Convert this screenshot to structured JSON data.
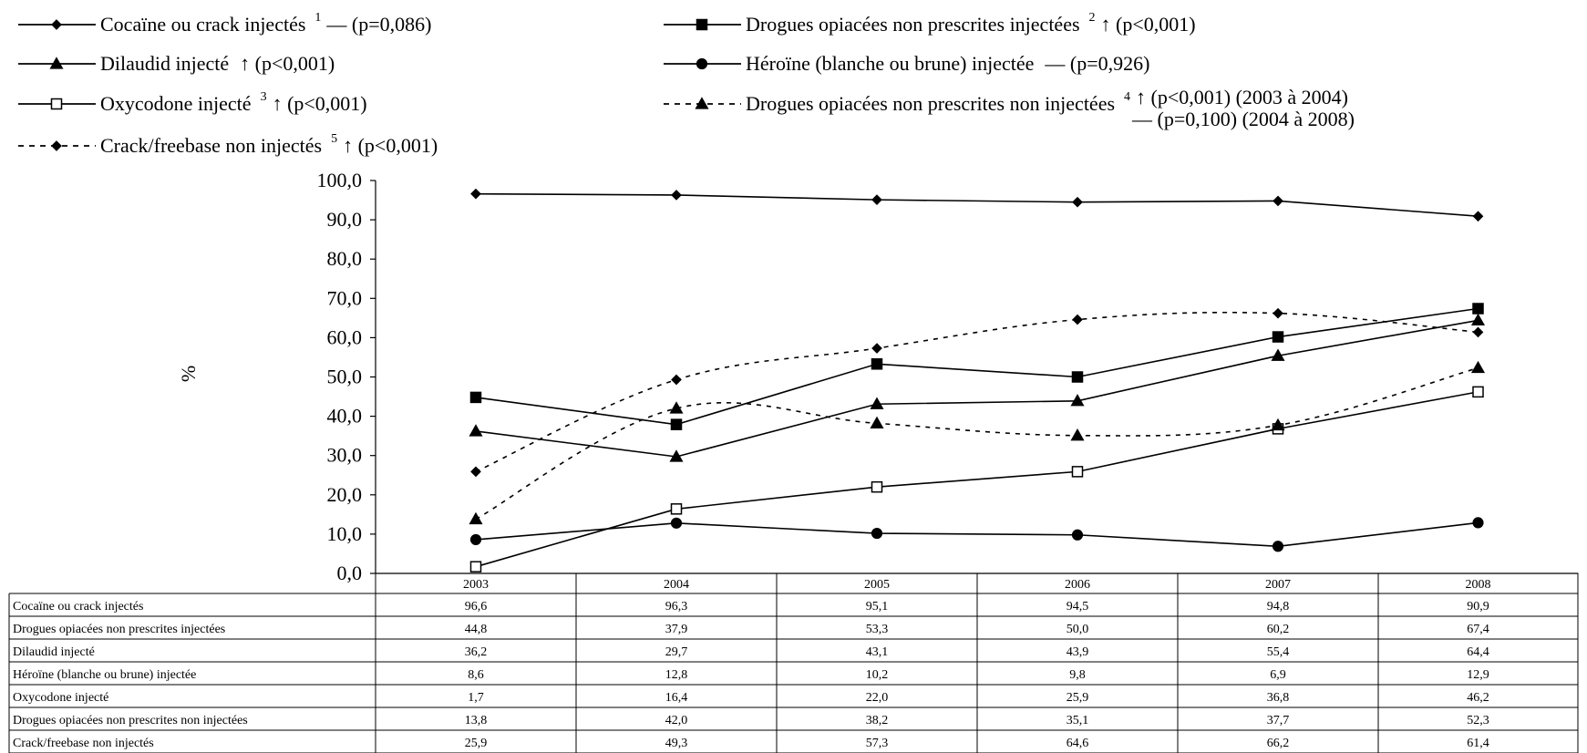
{
  "chart_data": {
    "type": "line",
    "title": "",
    "xlabel": "",
    "ylabel": "%",
    "ylim": [
      0,
      100
    ],
    "yticks": [
      "0,0",
      "10,0",
      "20,0",
      "30,0",
      "40,0",
      "50,0",
      "60,0",
      "70,0",
      "80,0",
      "90,0",
      "100,0"
    ],
    "categories": [
      "2003",
      "2004",
      "2005",
      "2006",
      "2007",
      "2008"
    ],
    "grid": false,
    "legend_position": "top",
    "series": [
      {
        "name": "Cocaïne ou crack injectés",
        "legend_sup": "1",
        "legend_note": "— (p=0,086)",
        "marker": "diamond",
        "fill": "#000000",
        "dash": false,
        "values": [
          96.6,
          96.3,
          95.1,
          94.5,
          94.8,
          90.9
        ],
        "labels": [
          "96,6",
          "96,3",
          "95,1",
          "94,5",
          "94,8",
          "90,9"
        ]
      },
      {
        "name": "Drogues opiacées non prescrites injectées",
        "legend_sup": "2",
        "legend_note": "↑ (p<0,001)",
        "marker": "square",
        "fill": "#000000",
        "dash": false,
        "values": [
          44.8,
          37.9,
          53.3,
          50.0,
          60.2,
          67.4
        ],
        "labels": [
          "44,8",
          "37,9",
          "53,3",
          "50,0",
          "60,2",
          "67,4"
        ]
      },
      {
        "name": "Dilaudid injecté",
        "legend_sup": "",
        "legend_note": "↑ (p<0,001)",
        "marker": "triangle",
        "fill": "#000000",
        "dash": false,
        "values": [
          36.2,
          29.7,
          43.1,
          43.9,
          55.4,
          64.4
        ],
        "labels": [
          "36,2",
          "29,7",
          "43,1",
          "43,9",
          "55,4",
          "64,4"
        ]
      },
      {
        "name": "Héroïne (blanche ou brune) injectée",
        "legend_sup": "",
        "legend_note": "— (p=0,926)",
        "marker": "circle",
        "fill": "#000000",
        "dash": false,
        "values": [
          8.6,
          12.8,
          10.2,
          9.8,
          6.9,
          12.9
        ],
        "labels": [
          "8,6",
          "12,8",
          "10,2",
          "9,8",
          "6,9",
          "12,9"
        ]
      },
      {
        "name": "Oxycodone injecté",
        "legend_sup": "3",
        "legend_note": "↑ (p<0,001)",
        "marker": "square",
        "fill": "#ffffff",
        "dash": false,
        "values": [
          1.7,
          16.4,
          22.0,
          25.9,
          36.8,
          46.2
        ],
        "labels": [
          "1,7",
          "16,4",
          "22,0",
          "25,9",
          "36,8",
          "46,2"
        ]
      },
      {
        "name": "Drogues opiacées non prescrites non injectées",
        "legend_sup": "4",
        "legend_note": "↑ (p<0,001) (2003 à 2004)",
        "legend_note2": "— (p=0,100) (2004 à 2008)",
        "marker": "triangle",
        "fill": "#000000",
        "dash": true,
        "values": [
          13.8,
          42.0,
          38.2,
          35.1,
          37.7,
          52.3
        ],
        "labels": [
          "13,8",
          "42,0",
          "38,2",
          "35,1",
          "37,7",
          "52,3"
        ]
      },
      {
        "name": "Crack/freebase non injectés",
        "legend_sup": "5",
        "legend_note": "↑ (p<0,001)",
        "marker": "diamond",
        "fill": "#000000",
        "dash": true,
        "values": [
          25.9,
          49.3,
          57.3,
          64.6,
          66.2,
          61.4
        ],
        "labels": [
          "25,9",
          "49,3",
          "57,3",
          "64,6",
          "66,2",
          "61,4"
        ]
      }
    ]
  }
}
